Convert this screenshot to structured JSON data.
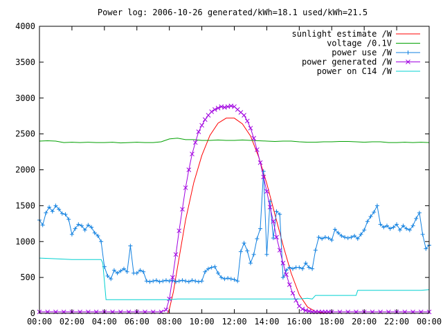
{
  "chart_data": {
    "type": "line",
    "title": "Power log: 2006-10-26 generated/kWh=18.1 used/kWh=21.5",
    "xlabel": "",
    "ylabel": "",
    "x_ticks": [
      "00:00",
      "02:00",
      "04:00",
      "06:00",
      "08:00",
      "10:00",
      "12:00",
      "14:00",
      "16:00",
      "18:00",
      "20:00",
      "22:00",
      "00:00"
    ],
    "xlim": [
      0,
      24
    ],
    "y_ticks": [
      "0",
      "500",
      "1000",
      "1500",
      "2000",
      "2500",
      "3000",
      "3500",
      "4000"
    ],
    "ylim": [
      0,
      4000
    ],
    "grid": false,
    "legend_position": "top-right",
    "series": [
      {
        "name": "sunlight estimate /W",
        "color": "#ff0000",
        "marker": "none",
        "x": [
          7.9,
          8.0,
          8.25,
          8.5,
          9.0,
          9.5,
          10.0,
          10.5,
          11.0,
          11.5,
          12.0,
          12.5,
          13.0,
          13.5,
          14.0,
          14.5,
          15.0,
          15.5,
          16.0,
          16.5,
          17.0,
          17.5,
          18.0
        ],
        "y": [
          0,
          60,
          300,
          640,
          1300,
          1820,
          2200,
          2480,
          2650,
          2720,
          2720,
          2640,
          2470,
          2180,
          1810,
          1380,
          950,
          560,
          260,
          90,
          25,
          5,
          0
        ]
      },
      {
        "name": "voltage /0.1V",
        "color": "#00a000",
        "marker": "none",
        "x": [
          0,
          0.5,
          1,
          1.5,
          2,
          2.5,
          3,
          3.5,
          4,
          4.5,
          5,
          5.5,
          6,
          6.5,
          7,
          7.5,
          8,
          8.5,
          9,
          9.5,
          10,
          10.5,
          11,
          11.5,
          12,
          12.5,
          13,
          13.5,
          14,
          14.5,
          15,
          15.5,
          16,
          16.5,
          17,
          17.5,
          18,
          18.5,
          19,
          19.5,
          20,
          20.5,
          21,
          21.5,
          22,
          22.5,
          23,
          23.5,
          24
        ],
        "y": [
          2400,
          2405,
          2400,
          2380,
          2385,
          2380,
          2385,
          2380,
          2380,
          2385,
          2375,
          2380,
          2385,
          2380,
          2380,
          2390,
          2430,
          2440,
          2420,
          2420,
          2410,
          2410,
          2415,
          2410,
          2410,
          2415,
          2410,
          2405,
          2400,
          2395,
          2400,
          2400,
          2390,
          2385,
          2385,
          2390,
          2390,
          2395,
          2395,
          2390,
          2385,
          2390,
          2390,
          2380,
          2380,
          2385,
          2380,
          2385,
          2380
        ]
      },
      {
        "name": "power use /W",
        "color": "#1080e0",
        "marker": "plus",
        "x": [
          0,
          0.2,
          0.4,
          0.6,
          0.8,
          1.0,
          1.2,
          1.4,
          1.6,
          1.8,
          2.0,
          2.2,
          2.4,
          2.6,
          2.8,
          3.0,
          3.2,
          3.4,
          3.6,
          3.8,
          4.0,
          4.2,
          4.4,
          4.6,
          4.8,
          5.0,
          5.2,
          5.4,
          5.6,
          5.8,
          6.0,
          6.2,
          6.4,
          6.6,
          6.8,
          7.0,
          7.2,
          7.4,
          7.6,
          7.8,
          8.0,
          8.2,
          8.4,
          8.6,
          8.8,
          9.0,
          9.2,
          9.4,
          9.6,
          9.8,
          10.0,
          10.2,
          10.4,
          10.6,
          10.8,
          11.0,
          11.2,
          11.4,
          11.6,
          11.8,
          12.0,
          12.2,
          12.4,
          12.6,
          12.8,
          13.0,
          13.2,
          13.4,
          13.6,
          13.8,
          14.0,
          14.2,
          14.4,
          14.6,
          14.8,
          15.0,
          15.2,
          15.4,
          15.6,
          15.8,
          16.0,
          16.2,
          16.4,
          16.6,
          16.8,
          17.0,
          17.2,
          17.4,
          17.6,
          17.8,
          18.0,
          18.2,
          18.4,
          18.6,
          18.8,
          19.0,
          19.2,
          19.4,
          19.6,
          19.8,
          20.0,
          20.2,
          20.4,
          20.6,
          20.8,
          21.0,
          21.2,
          21.4,
          21.6,
          21.8,
          22.0,
          22.2,
          22.4,
          22.6,
          22.8,
          23.0,
          23.2,
          23.4,
          23.6,
          23.8,
          24.0
        ],
        "y": [
          1300,
          1230,
          1400,
          1480,
          1420,
          1500,
          1450,
          1390,
          1380,
          1310,
          1100,
          1180,
          1240,
          1220,
          1160,
          1230,
          1200,
          1120,
          1080,
          1000,
          650,
          520,
          480,
          600,
          560,
          590,
          620,
          580,
          940,
          560,
          560,
          600,
          580,
          450,
          440,
          450,
          460,
          440,
          450,
          460,
          450,
          460,
          440,
          450,
          460,
          450,
          440,
          460,
          450,
          440,
          450,
          580,
          620,
          640,
          650,
          560,
          500,
          480,
          490,
          480,
          470,
          450,
          860,
          980,
          870,
          700,
          820,
          1040,
          1180,
          1980,
          820,
          1560,
          1050,
          1420,
          1380,
          500,
          600,
          640,
          620,
          640,
          640,
          620,
          700,
          640,
          620,
          880,
          1060,
          1040,
          1060,
          1050,
          1020,
          1170,
          1120,
          1080,
          1060,
          1050,
          1060,
          1080,
          1040,
          1100,
          1160,
          1280,
          1350,
          1410,
          1500,
          1240,
          1200,
          1220,
          1180,
          1200,
          1240,
          1160,
          1220,
          1180,
          1160,
          1220,
          1320,
          1400,
          1100,
          900,
          950
        ]
      },
      {
        "name": "power generated /W",
        "color": "#a000e0",
        "marker": "x",
        "x": [
          0,
          0.5,
          1,
          1.5,
          2,
          2.5,
          3,
          3.5,
          4,
          4.5,
          5,
          5.5,
          6,
          6.5,
          7,
          7.5,
          7.8,
          8.0,
          8.2,
          8.4,
          8.6,
          8.8,
          9.0,
          9.2,
          9.4,
          9.6,
          9.8,
          10.0,
          10.2,
          10.4,
          10.6,
          10.8,
          11.0,
          11.2,
          11.4,
          11.6,
          11.8,
          12.0,
          12.2,
          12.4,
          12.6,
          12.8,
          13.0,
          13.2,
          13.4,
          13.6,
          13.8,
          14.0,
          14.2,
          14.4,
          14.6,
          14.8,
          15.0,
          15.2,
          15.4,
          15.6,
          15.8,
          16.0,
          16.2,
          16.4,
          16.6,
          16.8,
          17.0,
          17.2,
          17.4,
          17.6,
          17.8,
          18.0,
          18.5,
          19,
          19.5,
          20,
          20.5,
          21,
          21.5,
          22,
          22.5,
          23,
          23.5,
          24
        ],
        "y": [
          20,
          20,
          20,
          20,
          20,
          20,
          20,
          20,
          20,
          20,
          20,
          20,
          20,
          20,
          20,
          20,
          50,
          200,
          500,
          820,
          1150,
          1450,
          1750,
          2000,
          2220,
          2380,
          2530,
          2620,
          2700,
          2760,
          2810,
          2840,
          2860,
          2880,
          2870,
          2880,
          2890,
          2880,
          2840,
          2800,
          2760,
          2680,
          2580,
          2440,
          2280,
          2100,
          1900,
          1700,
          1480,
          1280,
          1060,
          880,
          700,
          540,
          400,
          280,
          180,
          100,
          60,
          40,
          30,
          20,
          20,
          20,
          20,
          20,
          20,
          20,
          20,
          20,
          20,
          20,
          20,
          20,
          20,
          20,
          20,
          20,
          20,
          20
        ]
      },
      {
        "name": "power on C14 /W",
        "color": "#00d0d0",
        "marker": "none",
        "x": [
          0,
          1,
          2,
          3,
          3.8,
          3.9,
          4.1,
          6,
          8,
          8.5,
          10,
          12,
          14,
          16,
          16.5,
          16.8,
          17,
          18,
          19.5,
          19.6,
          20,
          22,
          23.5,
          24
        ],
        "y": [
          770,
          760,
          750,
          750,
          750,
          700,
          190,
          190,
          190,
          200,
          200,
          200,
          200,
          200,
          210,
          200,
          250,
          250,
          250,
          320,
          320,
          320,
          320,
          330
        ]
      }
    ]
  }
}
